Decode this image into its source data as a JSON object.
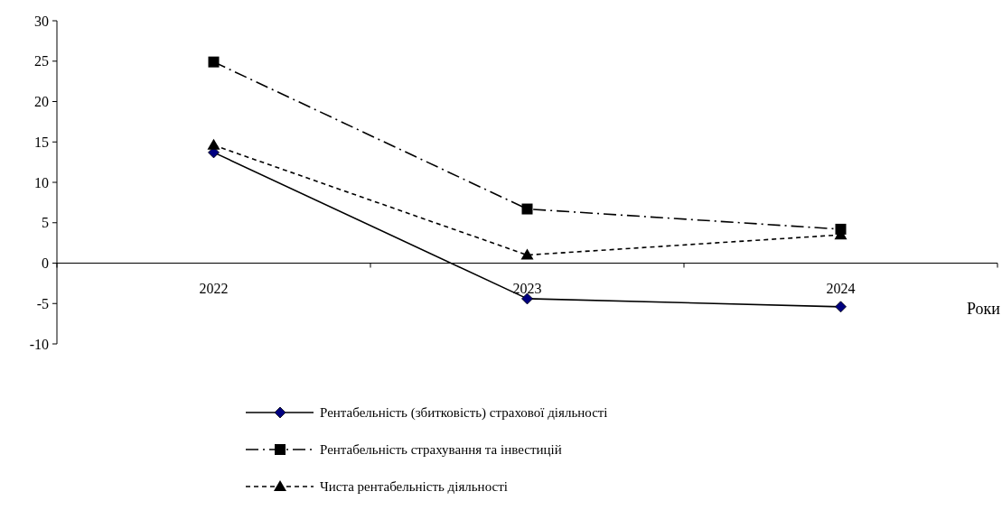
{
  "chart_data": {
    "type": "line",
    "xlabel": "Роки",
    "categories": [
      "2022",
      "2023",
      "2024"
    ],
    "ylim": [
      -10,
      30
    ],
    "yticks": [
      -10,
      -5,
      0,
      5,
      10,
      15,
      20,
      25,
      30
    ],
    "legend": "bottom",
    "grid": false,
    "series": [
      {
        "name": "Рентабельність (збитковість) страхової діяльності",
        "color": "#000000",
        "values": [
          13.7,
          -4.4,
          -5.4
        ],
        "marker": "diamond",
        "line_style": "solid"
      },
      {
        "name": "Рентабельність страхування та інвестицій",
        "color": "#000000",
        "values": [
          24.9,
          6.7,
          4.2
        ],
        "marker": "square",
        "line_style": "dashdot"
      },
      {
        "name": "Чиста рентабельність діяльності",
        "color": "#000000",
        "values": [
          14.6,
          1.0,
          3.5
        ],
        "marker": "triangle",
        "line_style": "dashed"
      }
    ]
  }
}
